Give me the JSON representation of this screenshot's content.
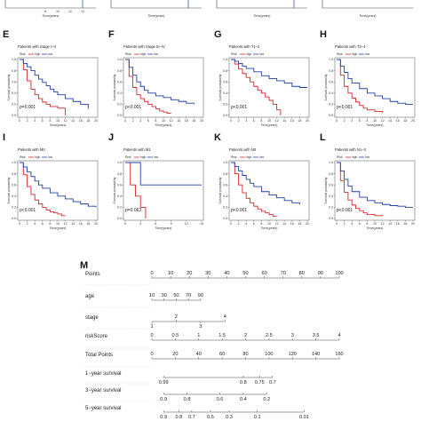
{
  "colors": {
    "high": "#d62728",
    "low": "#1f3fa8",
    "axis": "#444444",
    "box": "#555555"
  },
  "legend": {
    "title": "Risk",
    "high": "high",
    "low": "low"
  },
  "top_partial": {
    "xlabel": "Time(years)",
    "panels": [
      {
        "ticks": [
          "8",
          "10",
          "12",
          "14"
        ]
      },
      {
        "ticks": [
          "",
          "",
          "",
          ""
        ]
      },
      {
        "ticks": [
          "",
          "",
          "",
          ""
        ]
      },
      {
        "ticks": [
          "",
          "",
          "",
          ""
        ]
      }
    ]
  },
  "chart_data": [
    {
      "type": "line",
      "panel": "E",
      "title": "Patients with Stage I–II",
      "xlabel": "Time(years)",
      "ylabel": "Survival probability",
      "xlim": [
        0,
        20
      ],
      "ylim": [
        0,
        1
      ],
      "xticks": [
        0,
        2,
        4,
        6,
        8,
        10,
        12,
        14,
        16,
        18,
        20
      ],
      "yticks": [
        0,
        0.2,
        0.4,
        0.6,
        0.8,
        1.0
      ],
      "pvalue": "p=0.001",
      "series": [
        {
          "name": "high",
          "x": [
            0,
            1,
            2,
            3,
            4,
            5,
            6,
            7,
            8,
            9,
            10,
            11,
            12
          ],
          "y": [
            1,
            0.82,
            0.62,
            0.47,
            0.37,
            0.3,
            0.24,
            0.2,
            0.16,
            0.16,
            0.13,
            0.13,
            0
          ]
        },
        {
          "name": "low",
          "x": [
            0,
            1,
            2,
            3,
            4,
            5,
            6,
            7,
            8,
            9,
            10,
            12,
            14,
            16,
            18
          ],
          "y": [
            1,
            0.93,
            0.87,
            0.8,
            0.72,
            0.65,
            0.59,
            0.53,
            0.47,
            0.42,
            0.37,
            0.3,
            0.25,
            0.2,
            0.12
          ]
        }
      ]
    },
    {
      "type": "line",
      "panel": "F",
      "title": "Patients with Stage III–IV",
      "xlabel": "Time(years)",
      "ylabel": "Survival probability",
      "xlim": [
        0,
        20
      ],
      "ylim": [
        0,
        1
      ],
      "xticks": [
        0,
        2,
        4,
        6,
        8,
        10,
        12,
        14,
        16,
        18,
        20
      ],
      "yticks": [
        0,
        0.2,
        0.4,
        0.6,
        0.8,
        1.0
      ],
      "pvalue": "p<0.001",
      "series": [
        {
          "name": "high",
          "x": [
            0,
            1,
            2,
            3,
            4,
            5,
            6,
            7,
            8,
            9,
            10,
            11,
            12
          ],
          "y": [
            1,
            0.7,
            0.5,
            0.37,
            0.3,
            0.25,
            0.2,
            0.16,
            0.12,
            0.08,
            0.06,
            0.04,
            0.04
          ]
        },
        {
          "name": "low",
          "x": [
            0,
            1,
            2,
            3,
            4,
            5,
            6,
            8,
            10,
            12,
            14,
            16,
            18
          ],
          "y": [
            1,
            0.86,
            0.72,
            0.6,
            0.52,
            0.45,
            0.4,
            0.35,
            0.32,
            0.28,
            0.25,
            0.22,
            0.2
          ]
        }
      ]
    },
    {
      "type": "line",
      "panel": "G",
      "title": "Patients with T1–2",
      "xlabel": "Time(years)",
      "ylabel": "Survival probability",
      "xlim": [
        0,
        20
      ],
      "ylim": [
        0,
        1
      ],
      "xticks": [
        0,
        2,
        4,
        6,
        8,
        10,
        12,
        14,
        16,
        18,
        20
      ],
      "yticks": [
        0,
        0.2,
        0.4,
        0.6,
        0.8,
        1.0
      ],
      "pvalue": "p<0.001",
      "series": [
        {
          "name": "high",
          "x": [
            0,
            1,
            2,
            3,
            4,
            5,
            6,
            7,
            8,
            9,
            10,
            11,
            12,
            13
          ],
          "y": [
            1,
            0.92,
            0.83,
            0.75,
            0.68,
            0.6,
            0.52,
            0.45,
            0.4,
            0.33,
            0.27,
            0.2,
            0.1,
            0
          ]
        },
        {
          "name": "low",
          "x": [
            0,
            1,
            2,
            3,
            4,
            6,
            8,
            10,
            12,
            14,
            16,
            18,
            20
          ],
          "y": [
            1,
            0.97,
            0.93,
            0.88,
            0.84,
            0.78,
            0.71,
            0.66,
            0.62,
            0.58,
            0.52,
            0.5,
            0.5
          ]
        }
      ]
    },
    {
      "type": "line",
      "panel": "H",
      "title": "Patients with T3–4",
      "xlabel": "Time(years)",
      "ylabel": "Survival probability",
      "xlim": [
        0,
        20
      ],
      "ylim": [
        0,
        1
      ],
      "xticks": [
        0,
        2,
        4,
        6,
        8,
        10,
        12,
        14,
        16,
        18,
        20
      ],
      "yticks": [
        0,
        0.2,
        0.4,
        0.6,
        0.8,
        1.0
      ],
      "pvalue": "p<0.001",
      "series": [
        {
          "name": "high",
          "x": [
            0,
            1,
            2,
            3,
            4,
            5,
            6,
            7,
            8,
            10,
            12
          ],
          "y": [
            1,
            0.72,
            0.52,
            0.4,
            0.31,
            0.24,
            0.18,
            0.13,
            0.1,
            0.07,
            0.05
          ]
        },
        {
          "name": "low",
          "x": [
            0,
            1,
            2,
            3,
            4,
            6,
            8,
            10,
            12,
            14,
            16,
            18,
            20
          ],
          "y": [
            1,
            0.88,
            0.77,
            0.66,
            0.58,
            0.48,
            0.4,
            0.35,
            0.3,
            0.25,
            0.22,
            0.2,
            0.2
          ]
        }
      ]
    },
    {
      "type": "line",
      "panel": "I",
      "title": "Patients with M0",
      "xlabel": "Time(years)",
      "ylabel": "Survival probability",
      "xlim": [
        0,
        20
      ],
      "ylim": [
        0,
        1
      ],
      "xticks": [
        0,
        2,
        4,
        6,
        8,
        10,
        12,
        14,
        16,
        18,
        20
      ],
      "yticks": [
        0,
        0.2,
        0.4,
        0.6,
        0.8,
        1.0
      ],
      "pvalue": "p<0.001",
      "series": [
        {
          "name": "high",
          "x": [
            0,
            1,
            2,
            3,
            4,
            5,
            6,
            7,
            8,
            9,
            10,
            11,
            12
          ],
          "y": [
            1,
            0.78,
            0.57,
            0.43,
            0.33,
            0.26,
            0.2,
            0.15,
            0.12,
            0.1,
            0.08,
            0.05,
            0.05
          ]
        },
        {
          "name": "low",
          "x": [
            0,
            1,
            2,
            3,
            4,
            5,
            6,
            8,
            10,
            12,
            14,
            16,
            18,
            20
          ],
          "y": [
            1,
            0.92,
            0.83,
            0.75,
            0.67,
            0.6,
            0.54,
            0.46,
            0.4,
            0.35,
            0.3,
            0.26,
            0.22,
            0.2
          ]
        }
      ]
    },
    {
      "type": "line",
      "panel": "J",
      "title": "Patients with M1",
      "xlabel": "Time(years)",
      "ylabel": "Survival probability",
      "xlim": [
        0,
        15
      ],
      "ylim": [
        0,
        1
      ],
      "xticks": [
        0,
        3,
        6,
        9,
        12,
        15
      ],
      "yticks": [
        0,
        0.2,
        0.4,
        0.6,
        0.8,
        1.0
      ],
      "pvalue": "p=0.063",
      "series": [
        {
          "name": "high",
          "x": [
            0,
            1,
            2,
            3,
            4
          ],
          "y": [
            1,
            0.6,
            0.4,
            0.2,
            0
          ]
        },
        {
          "name": "low",
          "x": [
            0,
            2,
            3,
            15
          ],
          "y": [
            1,
            1,
            0.6,
            0.6
          ]
        }
      ]
    },
    {
      "type": "line",
      "panel": "K",
      "title": "Patients with N0",
      "xlabel": "Time(years)",
      "ylabel": "Survival probability",
      "xlim": [
        0,
        20
      ],
      "ylim": [
        0,
        1
      ],
      "xticks": [
        0,
        2,
        4,
        6,
        8,
        10,
        12,
        14,
        16,
        18,
        20
      ],
      "yticks": [
        0,
        0.2,
        0.4,
        0.6,
        0.8,
        1.0
      ],
      "pvalue": "p<0.001",
      "series": [
        {
          "name": "high",
          "x": [
            0,
            1,
            2,
            3,
            4,
            5,
            6,
            7,
            8,
            9,
            10,
            11,
            12
          ],
          "y": [
            1,
            0.8,
            0.6,
            0.46,
            0.36,
            0.28,
            0.22,
            0.17,
            0.13,
            0.1,
            0.07,
            0.04,
            0.04
          ]
        },
        {
          "name": "low",
          "x": [
            0,
            1,
            2,
            3,
            4,
            5,
            6,
            8,
            10,
            12,
            14,
            16,
            18
          ],
          "y": [
            1,
            0.93,
            0.85,
            0.77,
            0.7,
            0.63,
            0.57,
            0.48,
            0.42,
            0.37,
            0.32,
            0.28,
            0.25
          ]
        }
      ]
    },
    {
      "type": "line",
      "panel": "L",
      "title": "Patients with N1–3",
      "xlabel": "Time(years)",
      "ylabel": "Survival probability",
      "xlim": [
        0,
        20
      ],
      "ylim": [
        0,
        1
      ],
      "xticks": [
        0,
        2,
        4,
        6,
        8,
        10,
        12,
        14,
        16,
        18,
        20
      ],
      "yticks": [
        0,
        0.2,
        0.4,
        0.6,
        0.8,
        1.0
      ],
      "pvalue": "p<0.001",
      "series": [
        {
          "name": "high",
          "x": [
            0,
            1,
            2,
            3,
            4,
            5,
            6,
            7,
            8,
            10,
            12
          ],
          "y": [
            1,
            0.68,
            0.47,
            0.33,
            0.24,
            0.18,
            0.14,
            0.1,
            0.07,
            0.05,
            0.04
          ]
        },
        {
          "name": "low",
          "x": [
            0,
            1,
            2,
            3,
            4,
            6,
            8,
            10,
            12,
            14,
            16,
            18,
            20
          ],
          "y": [
            1,
            0.85,
            0.7,
            0.58,
            0.48,
            0.38,
            0.32,
            0.28,
            0.25,
            0.23,
            0.22,
            0.2,
            0.2
          ]
        }
      ]
    },
    {
      "type": "table",
      "panel": "M",
      "subtype": "nomogram",
      "rows": [
        {
          "label": "Points",
          "ticks": [
            {
              "t": "0",
              "p": 0
            },
            {
              "t": "10",
              "p": 10
            },
            {
              "t": "20",
              "p": 20
            },
            {
              "t": "30",
              "p": 30
            },
            {
              "t": "40",
              "p": 40
            },
            {
              "t": "50",
              "p": 50
            },
            {
              "t": "60",
              "p": 60
            },
            {
              "t": "70",
              "p": 70
            },
            {
              "t": "80",
              "p": 80
            },
            {
              "t": "90",
              "p": 90
            },
            {
              "t": "100",
              "p": 100
            }
          ],
          "scale": "points"
        },
        {
          "label": "age",
          "ticks": [
            {
              "t": "10",
              "p": 0
            },
            {
              "t": "30",
              "p": 6.5
            },
            {
              "t": "50",
              "p": 13
            },
            {
              "t": "70",
              "p": 19.5
            },
            {
              "t": "90",
              "p": 26
            }
          ],
          "scale": "points"
        },
        {
          "label": "stage",
          "ticks": [
            {
              "t": "1",
              "p": 0
            },
            {
              "t": "2",
              "p": 13
            },
            {
              "t": "3",
              "p": 26
            },
            {
              "t": "4",
              "p": 39
            }
          ],
          "scale": "points",
          "alternate": true
        },
        {
          "label": "riskScore",
          "ticks": [
            {
              "t": "0",
              "p": 0
            },
            {
              "t": "0.5",
              "p": 12.5
            },
            {
              "t": "1",
              "p": 25
            },
            {
              "t": "1.5",
              "p": 37.5
            },
            {
              "t": "2",
              "p": 50
            },
            {
              "t": "2.5",
              "p": 62.5
            },
            {
              "t": "3",
              "p": 75
            },
            {
              "t": "3.5",
              "p": 87.5
            },
            {
              "t": "4",
              "p": 100
            }
          ],
          "scale": "points"
        },
        {
          "label": "Total Points",
          "ticks": [
            {
              "t": "0",
              "p": 0
            },
            {
              "t": "20",
              "p": 20
            },
            {
              "t": "40",
              "p": 40
            },
            {
              "t": "60",
              "p": 60
            },
            {
              "t": "80",
              "p": 80
            },
            {
              "t": "100",
              "p": 100
            },
            {
              "t": "120",
              "p": 120
            },
            {
              "t": "140",
              "p": 140
            },
            {
              "t": "160",
              "p": 160
            }
          ],
          "scale": "total"
        },
        {
          "label": "1−year survival",
          "ticks": [
            {
              "t": "0.99",
              "p": 10
            },
            {
              "t": "0.8",
              "p": 78
            },
            {
              "t": "0.75",
              "p": 92
            },
            {
              "t": "0.7",
              "p": 103
            }
          ],
          "scale": "total"
        },
        {
          "label": "3−year survival",
          "ticks": [
            {
              "t": "0.9",
              "p": 10
            },
            {
              "t": "0.8",
              "p": 30
            },
            {
              "t": "0.6",
              "p": 58
            },
            {
              "t": "0.4",
              "p": 78
            },
            {
              "t": "0.2",
              "p": 98
            }
          ],
          "scale": "total"
        },
        {
          "label": "5−year survival",
          "ticks": [
            {
              "t": "0.9",
              "p": 10
            },
            {
              "t": "0.8",
              "p": 23
            },
            {
              "t": "0.7",
              "p": 34
            },
            {
              "t": "0.5",
              "p": 50
            },
            {
              "t": "0.3",
              "p": 66
            },
            {
              "t": "0.1",
              "p": 90
            },
            {
              "t": "0.01",
              "p": 130
            }
          ],
          "scale": "total"
        }
      ]
    }
  ]
}
